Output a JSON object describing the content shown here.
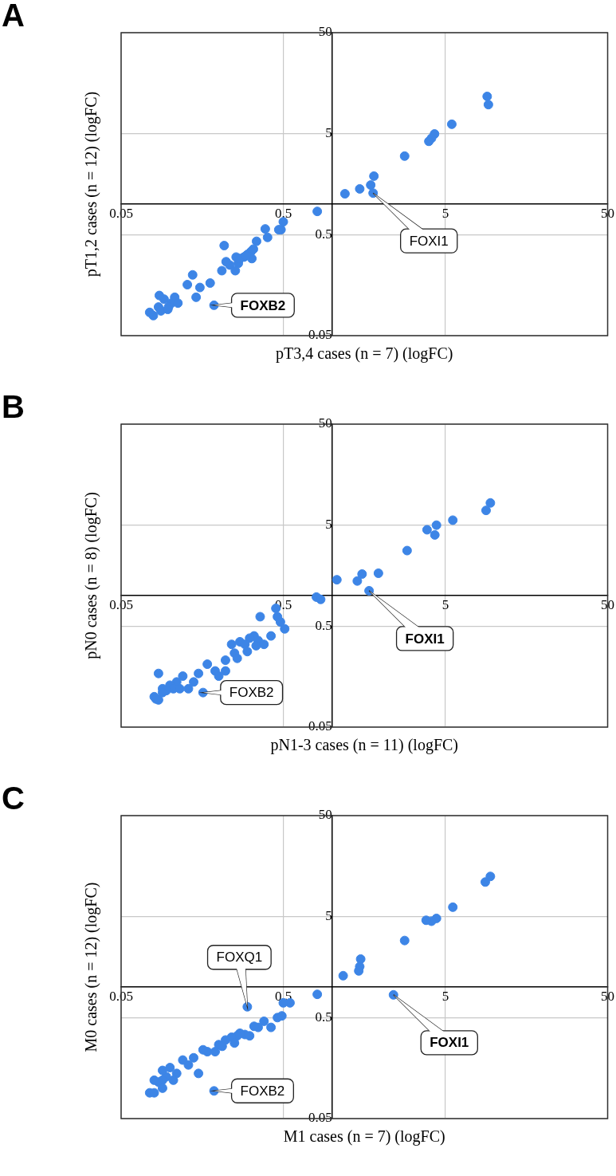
{
  "chart_data": [
    {
      "type": "scatter",
      "title": "A",
      "x_label": "pT3,4 cases (n = 7) (logFC)",
      "y_label": "pT1,2 cases (n = 12) (logFC)",
      "log": true,
      "grid": true,
      "color": "#3d85e6",
      "xlim": [
        0.05,
        50
      ],
      "ylim": [
        0.05,
        50
      ],
      "xticks": [
        0.05,
        0.5,
        5,
        50
      ],
      "yticks": [
        0.05,
        0.5,
        5,
        50
      ],
      "x": [
        9.04,
        9.2,
        5.47,
        4.28,
        4.1,
        3.95,
        2.8,
        1.81,
        1.73,
        1.48,
        1.2,
        1.79,
        0.81,
        0.5,
        0.484,
        0.469,
        0.387,
        0.4,
        0.342,
        0.316,
        0.302,
        0.286,
        0.256,
        0.264,
        0.234,
        0.222,
        0.209,
        0.253,
        0.177,
        0.153,
        0.128,
        0.138,
        0.216,
        0.327,
        0.32,
        0.27,
        0.295,
        0.145,
        0.107,
        0.102,
        0.092,
        0.098,
        0.112,
        0.085,
        0.088,
        0.079,
        0.086,
        0.075,
        0.097,
        0.187
      ],
      "values": [
        11.7,
        9.7,
        6.2,
        4.97,
        4.5,
        4.2,
        3.0,
        1.9,
        1.55,
        1.42,
        1.27,
        1.29,
        0.85,
        0.67,
        0.56,
        0.56,
        0.57,
        0.47,
        0.43,
        0.34,
        0.32,
        0.3,
        0.3,
        0.26,
        0.25,
        0.27,
        0.22,
        0.22,
        0.166,
        0.15,
        0.16,
        0.2,
        0.39,
        0.36,
        0.29,
        0.29,
        0.31,
        0.12,
        0.12,
        0.105,
        0.115,
        0.096,
        0.105,
        0.096,
        0.088,
        0.079,
        0.125,
        0.085,
        0.091,
        0.1
      ],
      "annotations": [
        {
          "text": "FOXI1",
          "x": 1.79,
          "y": 1.29,
          "bold": false
        },
        {
          "text": "FOXB2",
          "x": 0.187,
          "y": 0.1,
          "bold": true
        }
      ]
    },
    {
      "type": "scatter",
      "title": "B",
      "x_label": "pN1-3 cases (n = 11) (logFC)",
      "y_label": "pN0 cases (n = 8) (logFC)",
      "log": true,
      "grid": true,
      "color": "#3d85e6",
      "xlim": [
        0.05,
        50
      ],
      "ylim": [
        0.05,
        50
      ],
      "xticks": [
        0.05,
        0.5,
        5,
        50
      ],
      "yticks": [
        0.05,
        0.5,
        5,
        50
      ],
      "x": [
        9.46,
        8.9,
        5.55,
        4.4,
        4.3,
        3.85,
        2.9,
        1.93,
        1.53,
        1.43,
        1.07,
        1.69,
        0.8,
        0.85,
        0.45,
        0.46,
        0.48,
        0.51,
        0.36,
        0.42,
        0.33,
        0.31,
        0.35,
        0.27,
        0.29,
        0.24,
        0.3,
        0.25,
        0.26,
        0.34,
        0.38,
        0.22,
        0.17,
        0.19,
        0.15,
        0.14,
        0.2,
        0.22,
        0.12,
        0.11,
        0.1,
        0.105,
        0.115,
        0.095,
        0.09,
        0.13,
        0.09,
        0.08,
        0.082,
        0.085,
        0.085,
        0.16
      ],
      "values": [
        8.3,
        7.0,
        5.6,
        5.0,
        4.0,
        4.5,
        2.8,
        1.67,
        1.64,
        1.4,
        1.44,
        1.12,
        0.97,
        0.92,
        0.75,
        0.62,
        0.55,
        0.47,
        0.62,
        0.4,
        0.4,
        0.38,
        0.36,
        0.35,
        0.33,
        0.33,
        0.28,
        0.27,
        0.24,
        0.32,
        0.33,
        0.23,
        0.21,
        0.18,
        0.17,
        0.14,
        0.16,
        0.18,
        0.16,
        0.14,
        0.13,
        0.12,
        0.12,
        0.115,
        0.12,
        0.12,
        0.11,
        0.1,
        0.095,
        0.093,
        0.17,
        0.11
      ],
      "annotations": [
        {
          "text": "FOXI1",
          "x": 1.69,
          "y": 1.12,
          "bold": true
        },
        {
          "text": "FOXB2",
          "x": 0.16,
          "y": 0.11,
          "bold": false
        }
      ]
    },
    {
      "type": "scatter",
      "title": "C",
      "x_label": "M1 cases (n = 7) (logFC)",
      "y_label": "M0 cases (n = 12) (logFC)",
      "log": true,
      "grid": true,
      "color": "#3d85e6",
      "xlim": [
        0.05,
        50
      ],
      "ylim": [
        0.05,
        50
      ],
      "xticks": [
        0.05,
        0.5,
        5,
        50
      ],
      "yticks": [
        0.05,
        0.5,
        5,
        50
      ],
      "x": [
        9.46,
        8.8,
        5.55,
        4.4,
        4.1,
        3.8,
        2.8,
        1.5,
        1.48,
        1.46,
        1.17,
        2.39,
        0.81,
        0.55,
        0.5,
        0.3,
        0.46,
        0.49,
        0.38,
        0.42,
        0.35,
        0.33,
        0.29,
        0.27,
        0.26,
        0.24,
        0.22,
        0.31,
        0.25,
        0.2,
        0.19,
        0.21,
        0.17,
        0.16,
        0.14,
        0.13,
        0.12,
        0.1,
        0.11,
        0.095,
        0.09,
        0.085,
        0.08,
        0.075,
        0.08,
        0.09,
        0.105,
        0.15,
        0.09,
        0.187
      ],
      "values": [
        12.5,
        11.0,
        6.2,
        4.8,
        4.5,
        4.6,
        2.9,
        1.9,
        1.6,
        1.45,
        1.3,
        0.84,
        0.85,
        0.7,
        0.7,
        0.64,
        0.5,
        0.52,
        0.46,
        0.4,
        0.4,
        0.41,
        0.34,
        0.35,
        0.33,
        0.32,
        0.3,
        0.33,
        0.28,
        0.27,
        0.23,
        0.26,
        0.23,
        0.24,
        0.2,
        0.17,
        0.19,
        0.16,
        0.14,
        0.13,
        0.12,
        0.115,
        0.12,
        0.09,
        0.09,
        0.1,
        0.12,
        0.14,
        0.15,
        0.094
      ],
      "annotations": [
        {
          "text": "FOXQ1",
          "x": 0.3,
          "y": 0.64,
          "bold": false
        },
        {
          "text": "FOXI1",
          "x": 2.39,
          "y": 0.84,
          "bold": true
        },
        {
          "text": "FOXB2",
          "x": 0.187,
          "y": 0.094,
          "bold": false
        }
      ]
    }
  ]
}
